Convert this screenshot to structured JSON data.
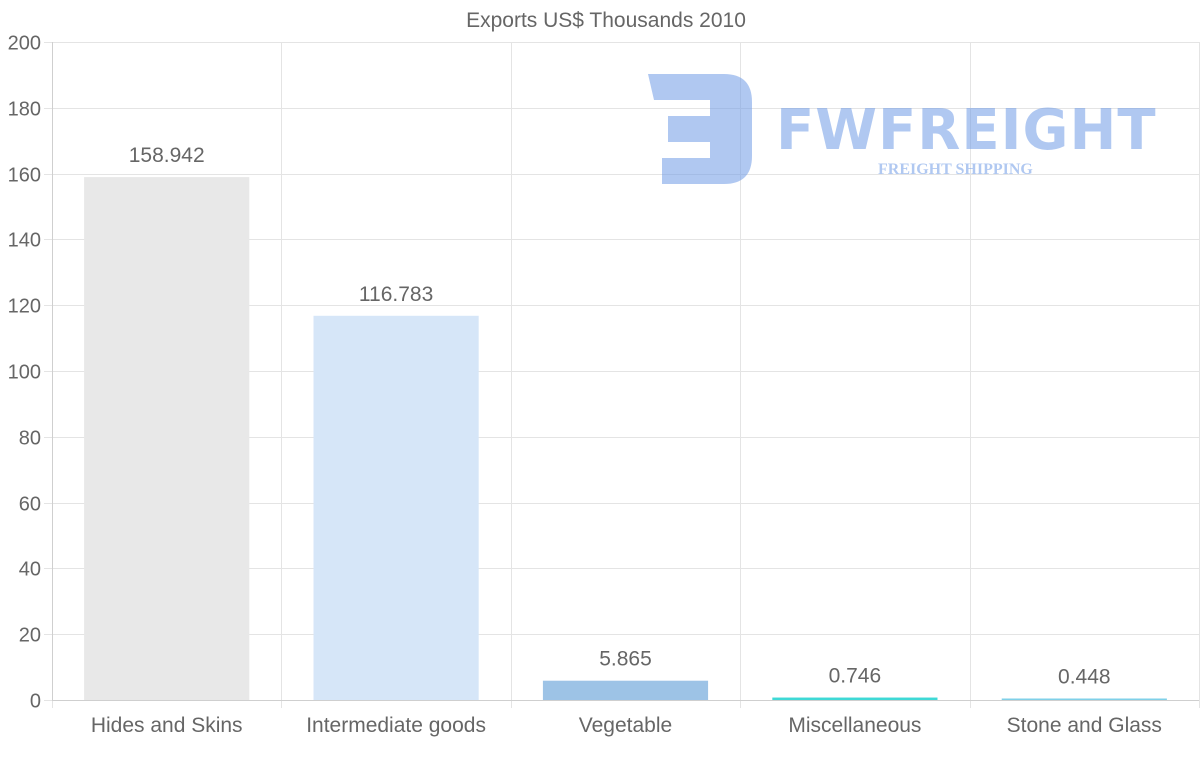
{
  "chart_data": {
    "type": "bar",
    "title": "Exports US$ Thousands 2010",
    "categories": [
      "Hides and Skins",
      "Intermediate goods",
      "Vegetable",
      "Miscellaneous",
      "Stone and Glass"
    ],
    "values": [
      158.942,
      116.783,
      5.865,
      0.746,
      0.448
    ],
    "data_labels": [
      "158.942",
      "116.783",
      "5.865",
      "0.746",
      "0.448"
    ],
    "colors": [
      "#e8e8e8",
      "#d6e6f8",
      "#9dc3e6",
      "#3fd9d6",
      "#7fd0e8"
    ],
    "ylim": [
      0,
      200
    ],
    "yticks": [
      0,
      20,
      40,
      60,
      80,
      100,
      120,
      140,
      160,
      180,
      200
    ],
    "xlabel": "",
    "ylabel": "",
    "grid": true
  },
  "watermark": {
    "brand": "FWFREIGHT",
    "tagline": "FREIGHT SHIPPING",
    "color": "#6f9ae6"
  }
}
